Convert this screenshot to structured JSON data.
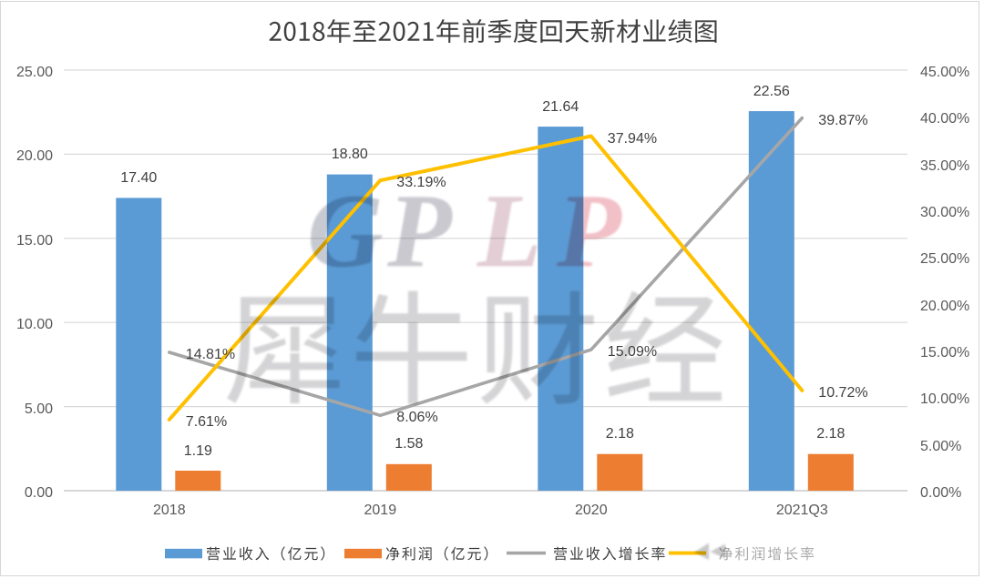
{
  "canvas": {
    "background": "#ffffff",
    "border_color": "#d6d6d6"
  },
  "title": {
    "text": "2018年至2021年前季度回天新材业绩图",
    "color": "#404040"
  },
  "chart_data": {
    "type": "combo",
    "title": "2018年至2021年前季度回天新材业绩图",
    "categories": [
      "2018",
      "2019",
      "2020",
      "2021Q3"
    ],
    "series": [
      {
        "name": "营业收入（亿元）",
        "type": "bar",
        "axis": "left",
        "color": "#5b9bd5",
        "values": [
          17.4,
          18.8,
          21.64,
          22.56
        ],
        "labels": [
          "17.40",
          "18.80",
          "21.64",
          "22.56"
        ]
      },
      {
        "name": "净利润（亿元）",
        "type": "bar",
        "axis": "left",
        "color": "#ed7d31",
        "values": [
          1.19,
          1.58,
          2.18,
          2.18
        ],
        "labels": [
          "1.19",
          "1.58",
          "2.18",
          "2.18"
        ]
      },
      {
        "name": "营业收入增长率",
        "type": "line",
        "axis": "right",
        "color": "#a6a6a6",
        "values": [
          14.81,
          8.06,
          15.09,
          39.87
        ],
        "labels": [
          "14.81%",
          "8.06%",
          "15.09%",
          "39.87%"
        ]
      },
      {
        "name": "净利润增长率",
        "type": "line",
        "axis": "right",
        "color": "#ffc000",
        "values": [
          7.61,
          33.19,
          37.94,
          10.72
        ],
        "labels": [
          "7.61%",
          "33.19%",
          "37.94%",
          "10.72%"
        ]
      }
    ],
    "left_axis": {
      "min": 0,
      "max": 25,
      "step": 5,
      "tick_labels": [
        "0.00",
        "5.00",
        "10.00",
        "15.00",
        "20.00",
        "25.00"
      ]
    },
    "right_axis": {
      "min": 0,
      "max": 45,
      "step": 5,
      "tick_labels": [
        "0.00%",
        "5.00%",
        "10.00%",
        "15.00%",
        "20.00%",
        "25.00%",
        "30.00%",
        "35.00%",
        "40.00%",
        "45.00%"
      ]
    },
    "grid": "horizontal",
    "legend_position": "bottom",
    "axis_label_color": "#595959",
    "data_label_color": "#404040",
    "gridline_color": "#d9d9d9",
    "axis_line_color": "#bfbfbf"
  },
  "watermark": {
    "logo_text": "GPLP",
    "logo_letter_colors": [
      "#c8cad1",
      "#cbc9d0",
      "#e2ced4",
      "#f2c0c7"
    ],
    "brand_text": "犀牛财经",
    "brand_color": "#d4d4d6",
    "faded_legend_color": "#a9a9a9"
  }
}
